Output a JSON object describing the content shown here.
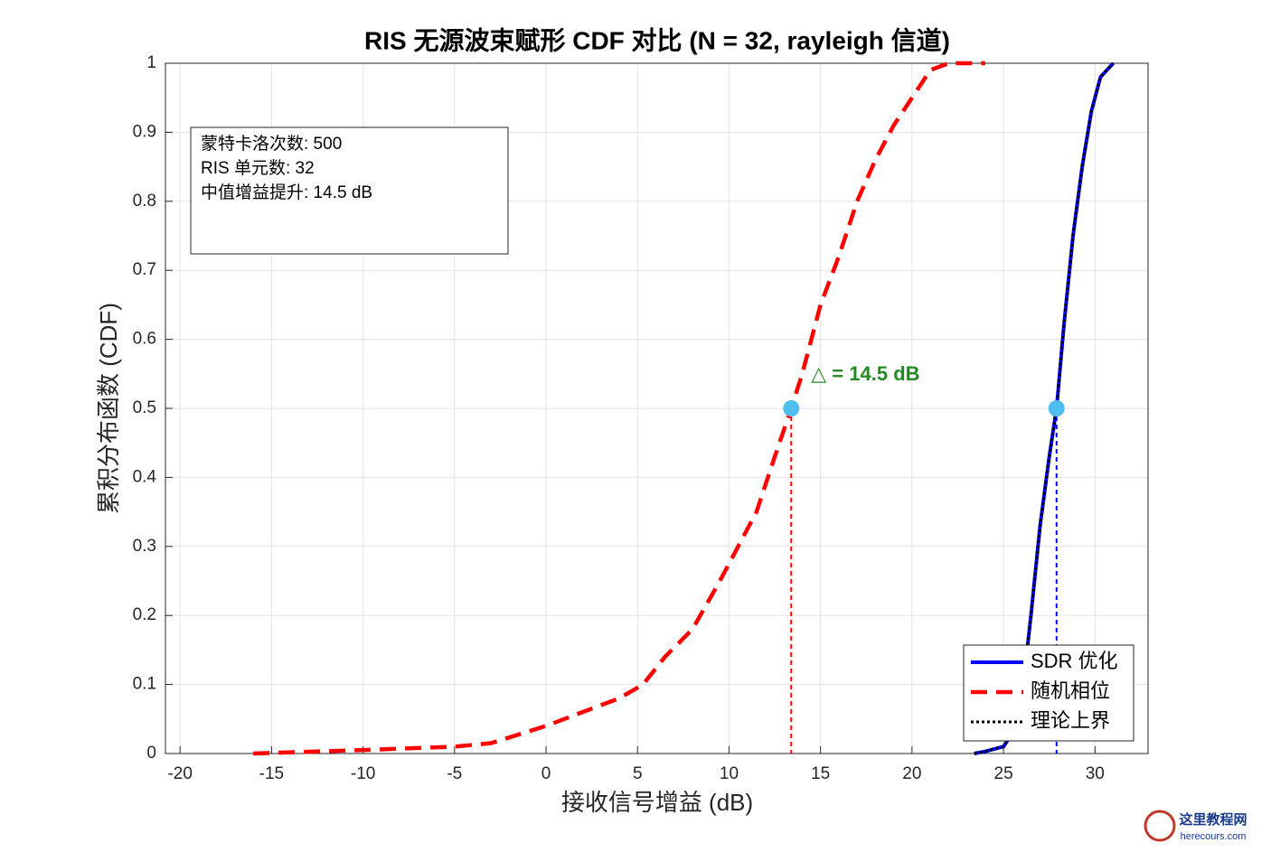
{
  "chart_data": {
    "type": "line",
    "title": "RIS 无源波束赋形 CDF 对比 (N = 32, rayleigh 信道)",
    "xlabel": "接收信号增益 (dB)",
    "ylabel": "累积分布函数 (CDF)",
    "xlim": [
      -20.8,
      32.9
    ],
    "ylim": [
      0,
      1
    ],
    "xticks": [
      -20,
      -15,
      -10,
      -5,
      0,
      5,
      10,
      15,
      20,
      25,
      30
    ],
    "yticks": [
      0,
      0.1,
      0.2,
      0.3,
      0.4,
      0.5,
      0.6,
      0.7,
      0.8,
      0.9,
      1
    ],
    "grid": true,
    "legend": "lower right",
    "series": [
      {
        "name": "SDR 优化",
        "color": "#0000ff",
        "style": "solid",
        "x": [
          23.4,
          24,
          25,
          25.5,
          26,
          26.5,
          27,
          27.5,
          27.9,
          28.3,
          28.8,
          29.3,
          29.8,
          30.3,
          31
        ],
        "values": [
          0,
          0.003,
          0.01,
          0.03,
          0.08,
          0.2,
          0.33,
          0.43,
          0.5,
          0.62,
          0.75,
          0.85,
          0.93,
          0.98,
          1
        ]
      },
      {
        "name": "随机相位",
        "color": "#ff0000",
        "style": "dashed",
        "x": [
          -16,
          -10,
          -5,
          -3,
          0,
          2,
          4,
          5.3,
          6.5,
          8,
          9.5,
          10.5,
          11.5,
          12.5,
          13.4,
          14,
          15,
          16,
          17,
          18,
          19,
          20,
          21,
          22,
          24
        ],
        "values": [
          0,
          0.005,
          0.01,
          0.015,
          0.04,
          0.06,
          0.08,
          0.1,
          0.14,
          0.18,
          0.25,
          0.3,
          0.35,
          0.43,
          0.5,
          0.55,
          0.65,
          0.72,
          0.8,
          0.86,
          0.91,
          0.95,
          0.99,
          1,
          1
        ]
      },
      {
        "name": "理论上界",
        "color": "#000000",
        "style": "dotted",
        "x": [
          23.4,
          24,
          25,
          25.5,
          26,
          26.5,
          27,
          27.5,
          27.9,
          28.3,
          28.8,
          29.3,
          29.8,
          30.3,
          31
        ],
        "values": [
          0,
          0.003,
          0.01,
          0.03,
          0.08,
          0.2,
          0.33,
          0.43,
          0.5,
          0.62,
          0.75,
          0.85,
          0.93,
          0.98,
          1
        ]
      }
    ],
    "medians": {
      "x": [
        13.4,
        27.9
      ],
      "values": [
        0.5,
        0.5
      ],
      "color": "#4dbeee",
      "line_colors": [
        "#ff0000",
        "#0000ff"
      ]
    },
    "annotation": {
      "text": "△ = 14.5 dB",
      "color": "#228b22"
    },
    "info_box": [
      "蒙特卡洛次数: 500",
      "RIS 单元数: 32",
      "中值增益提升: 14.5 dB"
    ]
  },
  "watermark": {
    "name": "这里教程网",
    "url": "herecours.com"
  }
}
